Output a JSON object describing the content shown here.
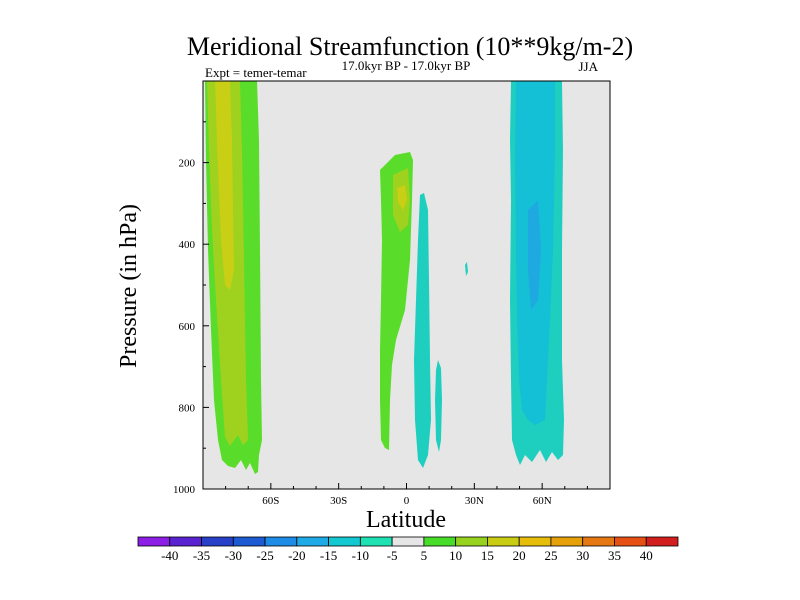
{
  "chart_data": {
    "type": "heatmap",
    "title": "Meridional Streamfunction (10**9kg/m-2)",
    "subtitle_left": "Expt = temer-temar",
    "subtitle_center": "17.0kyr BP - 17.0kyr BP",
    "subtitle_right": "JJA",
    "xlabel": "Latitude",
    "ylabel": "Pressure (in hPa)",
    "xlim": [
      -90,
      90
    ],
    "ylim": [
      1000,
      0
    ],
    "x_ticks": [
      {
        "value": -60,
        "label": "60S"
      },
      {
        "value": -30,
        "label": "30S"
      },
      {
        "value": 0,
        "label": "0"
      },
      {
        "value": 30,
        "label": "30N"
      },
      {
        "value": 60,
        "label": "60N"
      }
    ],
    "y_ticks": [
      {
        "value": 200,
        "label": "200"
      },
      {
        "value": 400,
        "label": "400"
      },
      {
        "value": 600,
        "label": "600"
      },
      {
        "value": 800,
        "label": "800"
      },
      {
        "value": 1000,
        "label": "1000"
      }
    ],
    "colorbar": {
      "labels": [
        "-40",
        "-35",
        "-30",
        "-25",
        "-20",
        "-15",
        "-10",
        "-5",
        "5",
        "10",
        "15",
        "20",
        "25",
        "30",
        "35",
        "40"
      ],
      "colors": [
        "#8c1ee6",
        "#5a23d2",
        "#2840c8",
        "#1e5ad2",
        "#1e8ce6",
        "#1eaae6",
        "#14c8d2",
        "#1ee1b4",
        "#e6e6e6",
        "#46dc28",
        "#96d21e",
        "#c8cd14",
        "#e6be0a",
        "#e6a00a",
        "#e67814",
        "#e65014",
        "#d21e1e"
      ]
    },
    "regions": [
      {
        "name": "southern-cell-5to10",
        "level": "5 to 10",
        "color": "#5adc2a",
        "lat_range": [
          -87.5,
          -64.5
        ],
        "p_range": [
          0,
          1000
        ]
      },
      {
        "name": "southern-cell-10to15",
        "level": "10 to 15",
        "color": "#9ed21e",
        "lat_range": [
          -86.5,
          -71.5
        ],
        "p_range": [
          0,
          910
        ]
      },
      {
        "name": "southern-cell-15to20",
        "level": "15 to 20",
        "color": "#c8cf14",
        "lat_range": [
          -83,
          -76
        ],
        "p_range": [
          0,
          480
        ]
      },
      {
        "name": "equatorial-cell-5to10",
        "level": "5 to 10",
        "color": "#5adc2a",
        "lat_range": [
          -13,
          2
        ],
        "p_range": [
          180,
          900
        ]
      },
      {
        "name": "equatorial-cell-10to15",
        "level": "10 to 15",
        "color": "#9ed21e",
        "lat_range": [
          -7,
          2
        ],
        "p_range": [
          200,
          330
        ]
      },
      {
        "name": "equatorial-neg-cell",
        "level": "-10 to -5",
        "color": "#1ecfbf",
        "lat_range": [
          3,
          11
        ],
        "p_range": [
          270,
          950
        ]
      },
      {
        "name": "equatorial-neg-small-cell",
        "level": "-10 to -5",
        "color": "#1ecfbf",
        "lat_range": [
          14,
          17
        ],
        "p_range": [
          680,
          920
        ]
      },
      {
        "name": "northern-cell-5to10",
        "level": "-10 to -5",
        "color": "#1ecfbf",
        "lat_range": [
          47,
          69
        ],
        "p_range": [
          0,
          960
        ]
      },
      {
        "name": "northern-cell-10to15",
        "level": "-15 to -10",
        "color": "#14c0d6",
        "lat_range": [
          50,
          64
        ],
        "p_range": [
          0,
          850
        ]
      }
    ]
  }
}
